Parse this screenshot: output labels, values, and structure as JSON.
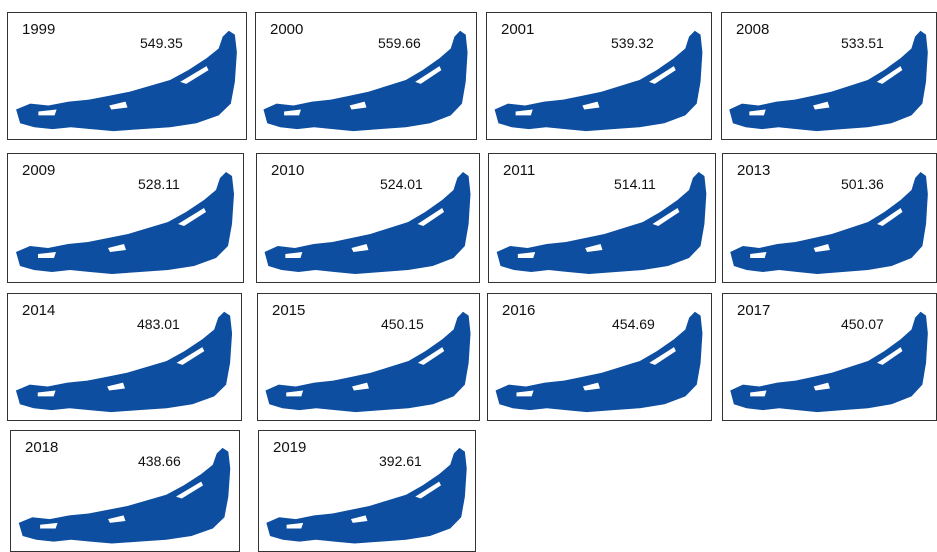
{
  "panels": [
    {
      "year": "1999",
      "value": 549.35
    },
    {
      "year": "2000",
      "value": 559.66
    },
    {
      "year": "2001",
      "value": 539.32
    },
    {
      "year": "2008",
      "value": 533.51
    },
    {
      "year": "2009",
      "value": 528.11
    },
    {
      "year": "2010",
      "value": 524.01
    },
    {
      "year": "2011",
      "value": 514.11
    },
    {
      "year": "2013",
      "value": 501.36
    },
    {
      "year": "2014",
      "value": 483.01
    },
    {
      "year": "2015",
      "value": 450.15
    },
    {
      "year": "2016",
      "value": 454.69
    },
    {
      "year": "2017",
      "value": 450.07
    },
    {
      "year": "2018",
      "value": 438.66
    },
    {
      "year": "2019",
      "value": 392.61
    }
  ]
}
